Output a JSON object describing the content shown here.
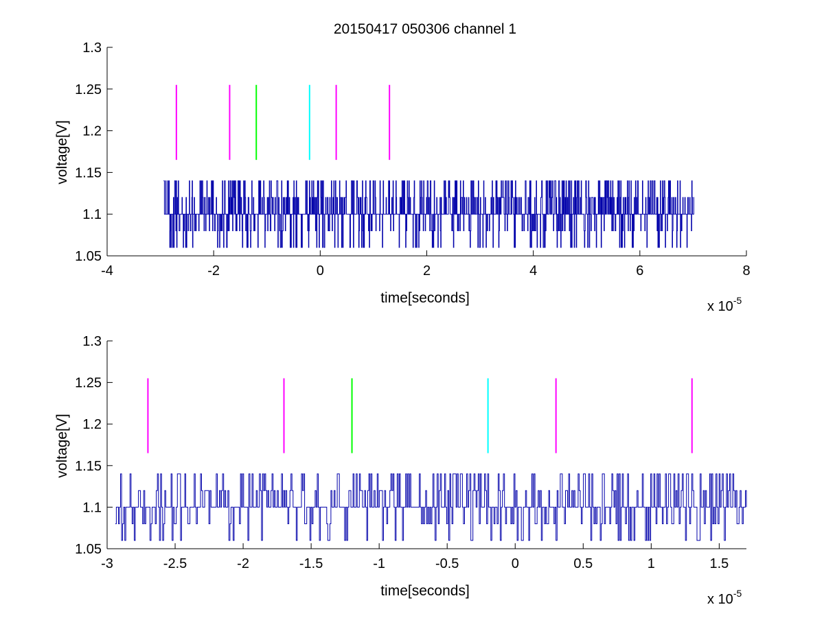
{
  "chart_data": [
    {
      "type": "line",
      "title": "20150417 050306 channel 1",
      "xlabel": "time[seconds]",
      "ylabel": "voltage[V]",
      "x_exponent_label": "x 10",
      "x_exponent": "-5",
      "xlim": [
        -4,
        8
      ],
      "ylim": [
        1.05,
        1.3
      ],
      "xticks": [
        -4,
        -2,
        0,
        2,
        4,
        6,
        8
      ],
      "xtick_labels": [
        "-4",
        "-2",
        "0",
        "2",
        "4",
        "6",
        "8"
      ],
      "yticks": [
        1.05,
        1.1,
        1.15,
        1.2,
        1.25,
        1.3
      ],
      "ytick_labels": [
        "1.05",
        "1.1",
        "1.15",
        "1.2",
        "1.25",
        "1.3"
      ],
      "grid": false,
      "signal": {
        "color": "#0000aa",
        "x_start": -2.94,
        "x_end": 7.02,
        "baseline": 1.1,
        "levels": [
          1.06,
          1.08,
          1.1,
          1.12,
          1.14
        ],
        "sample_count": 1300
      },
      "markers": [
        {
          "x": -2.7,
          "y_low": 1.165,
          "y_high": 1.255,
          "color": "#ff00ff"
        },
        {
          "x": -1.7,
          "y_low": 1.165,
          "y_high": 1.255,
          "color": "#ff00ff"
        },
        {
          "x": -1.2,
          "y_low": 1.165,
          "y_high": 1.255,
          "color": "#00ff00"
        },
        {
          "x": -0.2,
          "y_low": 1.165,
          "y_high": 1.255,
          "color": "#00ffff"
        },
        {
          "x": 0.3,
          "y_low": 1.165,
          "y_high": 1.255,
          "color": "#ff00ff"
        },
        {
          "x": 1.3,
          "y_low": 1.165,
          "y_high": 1.255,
          "color": "#ff00ff"
        }
      ]
    },
    {
      "type": "line",
      "title": "",
      "xlabel": "time[seconds]",
      "ylabel": "voltage[V]",
      "x_exponent_label": "x 10",
      "x_exponent": "-5",
      "xlim": [
        -3.0,
        1.7
      ],
      "ylim": [
        1.05,
        1.3
      ],
      "xticks": [
        -3,
        -2.5,
        -2,
        -1.5,
        -1,
        -0.5,
        0,
        0.5,
        1,
        1.5
      ],
      "xtick_labels": [
        "-3",
        "-2.5",
        "-2",
        "-1.5",
        "-1",
        "-0.5",
        "0",
        "0.5",
        "1",
        "1.5"
      ],
      "yticks": [
        1.05,
        1.1,
        1.15,
        1.2,
        1.25,
        1.3
      ],
      "ytick_labels": [
        "1.05",
        "1.1",
        "1.15",
        "1.2",
        "1.25",
        "1.3"
      ],
      "grid": false,
      "signal": {
        "color": "#0000aa",
        "x_start": -2.94,
        "x_end": 1.7,
        "baseline": 1.1,
        "levels": [
          1.06,
          1.08,
          1.1,
          1.12,
          1.14
        ],
        "sample_count": 600
      },
      "markers": [
        {
          "x": -2.7,
          "y_low": 1.165,
          "y_high": 1.255,
          "color": "#ff00ff"
        },
        {
          "x": -1.7,
          "y_low": 1.165,
          "y_high": 1.255,
          "color": "#ff00ff"
        },
        {
          "x": -1.2,
          "y_low": 1.165,
          "y_high": 1.255,
          "color": "#00ff00"
        },
        {
          "x": -0.2,
          "y_low": 1.165,
          "y_high": 1.255,
          "color": "#00ffff"
        },
        {
          "x": 0.3,
          "y_low": 1.165,
          "y_high": 1.255,
          "color": "#ff00ff"
        },
        {
          "x": 1.3,
          "y_low": 1.165,
          "y_high": 1.255,
          "color": "#ff00ff"
        }
      ]
    }
  ]
}
